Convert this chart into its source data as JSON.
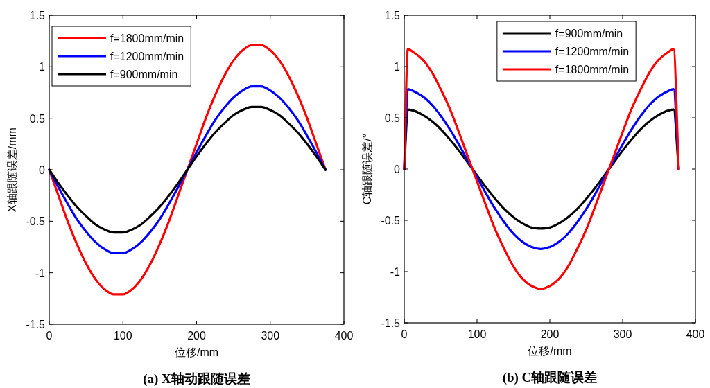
{
  "chart_data": [
    {
      "type": "line",
      "title": "(a) X轴动跟随误差",
      "xlabel": "位移/mm",
      "ylabel": "X轴跟随误差/mm",
      "xlim": [
        0,
        400
      ],
      "xticks": [
        0,
        100,
        200,
        300,
        400
      ],
      "ylim": [
        -1.5,
        1.5
      ],
      "yticks": [
        -1.5,
        -1,
        -0.5,
        0,
        0.5,
        1,
        1.5
      ],
      "legend": "top left",
      "grid": false,
      "line_style": "solid",
      "x": [
        0,
        12.5,
        25,
        37.5,
        50,
        62.5,
        75,
        87.5,
        100,
        112.5,
        125,
        137.5,
        150,
        162.5,
        175,
        187.5,
        200,
        212.5,
        225,
        237.5,
        250,
        262.5,
        275,
        287.5,
        300,
        312.5,
        325,
        337.5,
        350,
        362.5,
        375
      ],
      "series": [
        {
          "name": "f=1800mm/min",
          "color": "#ff0000",
          "values": [
            0,
            -0.25,
            -0.5,
            -0.72,
            -0.91,
            -1.06,
            -1.16,
            -1.21,
            -1.21,
            -1.16,
            -1.06,
            -0.91,
            -0.72,
            -0.5,
            -0.25,
            0,
            0.25,
            0.5,
            0.72,
            0.91,
            1.06,
            1.16,
            1.21,
            1.21,
            1.16,
            1.06,
            0.91,
            0.72,
            0.5,
            0.25,
            0
          ]
        },
        {
          "name": "f=1200mm/min",
          "color": "#0000ff",
          "values": [
            0,
            -0.17,
            -0.33,
            -0.48,
            -0.6,
            -0.7,
            -0.77,
            -0.81,
            -0.81,
            -0.77,
            -0.7,
            -0.6,
            -0.48,
            -0.33,
            -0.17,
            0,
            0.17,
            0.33,
            0.48,
            0.6,
            0.7,
            0.77,
            0.81,
            0.81,
            0.77,
            0.7,
            0.6,
            0.48,
            0.33,
            0.17,
            0
          ]
        },
        {
          "name": "f=900mm/min",
          "color": "#000000",
          "values": [
            0,
            -0.13,
            -0.25,
            -0.36,
            -0.45,
            -0.53,
            -0.58,
            -0.61,
            -0.61,
            -0.58,
            -0.53,
            -0.45,
            -0.36,
            -0.25,
            -0.13,
            0,
            0.13,
            0.25,
            0.36,
            0.45,
            0.53,
            0.58,
            0.61,
            0.61,
            0.58,
            0.53,
            0.45,
            0.36,
            0.25,
            0.13,
            0
          ]
        }
      ]
    },
    {
      "type": "line",
      "title": "(b) C轴跟随误差",
      "xlabel": "位移/mm",
      "ylabel": "C轴跟随误差/°",
      "xlim": [
        0,
        400
      ],
      "xticks": [
        0,
        100,
        200,
        300,
        400
      ],
      "ylim": [
        -1.5,
        1.5
      ],
      "yticks": [
        -1.5,
        -1,
        -0.5,
        0,
        0.5,
        1,
        1.5
      ],
      "legend": "top",
      "grid": false,
      "line_style": "solid",
      "x": [
        0,
        5,
        12.5,
        25,
        37.5,
        50,
        62.5,
        75,
        87.5,
        100,
        112.5,
        125,
        137.5,
        150,
        162.5,
        175,
        187.5,
        200,
        212.5,
        225,
        237.5,
        250,
        262.5,
        275,
        287.5,
        300,
        312.5,
        325,
        337.5,
        350,
        362.5,
        370,
        377
      ],
      "series": [
        {
          "name": "f=900mm/min",
          "color": "#000000",
          "values": [
            0,
            0.58,
            0.57,
            0.53,
            0.47,
            0.39,
            0.29,
            0.18,
            0.06,
            -0.06,
            -0.18,
            -0.29,
            -0.39,
            -0.47,
            -0.53,
            -0.57,
            -0.58,
            -0.57,
            -0.53,
            -0.47,
            -0.39,
            -0.29,
            -0.18,
            -0.06,
            0.06,
            0.18,
            0.29,
            0.39,
            0.47,
            0.53,
            0.57,
            0.58,
            0
          ]
        },
        {
          "name": "f=1200mm/min",
          "color": "#0000ff",
          "values": [
            0,
            0.78,
            0.76,
            0.71,
            0.63,
            0.52,
            0.39,
            0.24,
            0.08,
            -0.08,
            -0.24,
            -0.39,
            -0.52,
            -0.63,
            -0.71,
            -0.76,
            -0.78,
            -0.76,
            -0.71,
            -0.63,
            -0.52,
            -0.39,
            -0.24,
            -0.08,
            0.08,
            0.24,
            0.39,
            0.52,
            0.63,
            0.71,
            0.76,
            0.78,
            0
          ]
        },
        {
          "name": "f=1800mm/min",
          "color": "#ff0000",
          "values": [
            0,
            1.17,
            1.14,
            1.07,
            0.95,
            0.78,
            0.59,
            0.36,
            0.12,
            -0.12,
            -0.36,
            -0.59,
            -0.78,
            -0.95,
            -1.07,
            -1.14,
            -1.17,
            -1.14,
            -1.07,
            -0.95,
            -0.78,
            -0.59,
            -0.36,
            -0.12,
            0.12,
            0.36,
            0.59,
            0.78,
            0.95,
            1.07,
            1.14,
            1.17,
            0
          ]
        }
      ]
    }
  ]
}
